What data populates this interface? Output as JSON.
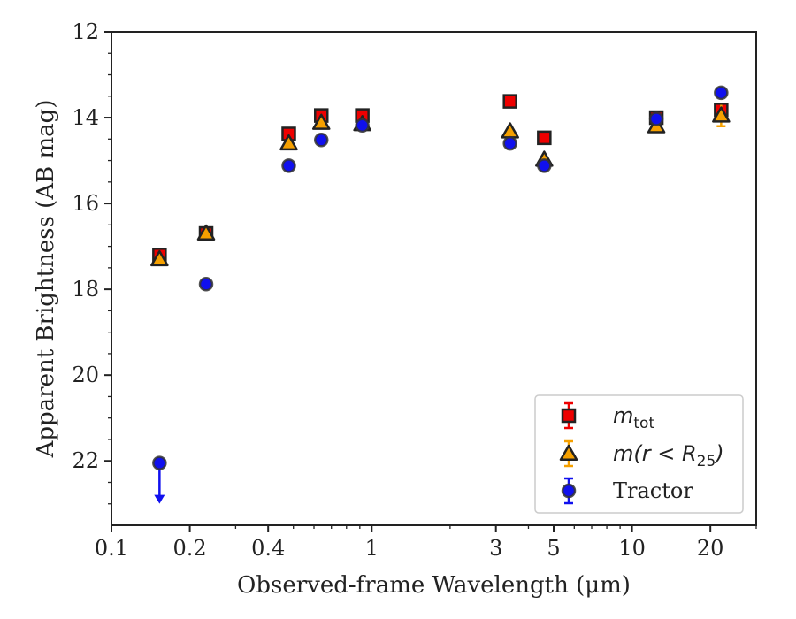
{
  "chart_data": {
    "type": "scatter",
    "xlabel": "Observed-frame Wavelength (μm)",
    "ylabel": "Apparent Brightness (AB mag)",
    "xscale": "log",
    "xlim": [
      0.1,
      30
    ],
    "ylim": [
      23.5,
      12
    ],
    "y_inverted": true,
    "xticks": [
      {
        "value": 0.1,
        "label": "0.1"
      },
      {
        "value": 0.2,
        "label": "0.2"
      },
      {
        "value": 0.4,
        "label": "0.4"
      },
      {
        "value": 1,
        "label": "1"
      },
      {
        "value": 3,
        "label": "3"
      },
      {
        "value": 5,
        "label": "5"
      },
      {
        "value": 10,
        "label": "10"
      },
      {
        "value": 20,
        "label": "20"
      }
    ],
    "yticks": [
      12,
      14,
      16,
      18,
      20,
      22
    ],
    "legend": {
      "position": "lower right"
    },
    "series": [
      {
        "name": "m_tot",
        "legend_main": "m",
        "legend_sub": "tot",
        "marker": "square",
        "color": "#ee0000",
        "edgecolor": "#222222",
        "points": [
          {
            "x": 0.153,
            "y": 17.2
          },
          {
            "x": 0.231,
            "y": 16.7
          },
          {
            "x": 0.48,
            "y": 14.38
          },
          {
            "x": 0.64,
            "y": 13.95
          },
          {
            "x": 0.92,
            "y": 13.95
          },
          {
            "x": 3.4,
            "y": 13.62
          },
          {
            "x": 4.6,
            "y": 14.47
          },
          {
            "x": 12.4,
            "y": 14.0
          },
          {
            "x": 22.0,
            "y": 13.82
          }
        ]
      },
      {
        "name": "m(r < R25)",
        "legend_main": "m(r < R",
        "legend_sub": "25",
        "legend_tail": ")",
        "marker": "triangle",
        "color": "#f5a000",
        "edgecolor": "#222222",
        "points": [
          {
            "x": 0.153,
            "y": 17.3
          },
          {
            "x": 0.231,
            "y": 16.7
          },
          {
            "x": 0.48,
            "y": 14.6
          },
          {
            "x": 0.64,
            "y": 14.12
          },
          {
            "x": 0.92,
            "y": 14.15
          },
          {
            "x": 3.4,
            "y": 14.32
          },
          {
            "x": 4.6,
            "y": 14.98
          },
          {
            "x": 12.4,
            "y": 14.2
          },
          {
            "x": 22.0,
            "y": 13.95,
            "yerr": 0.25
          }
        ]
      },
      {
        "name": "Tractor",
        "marker": "circle",
        "color": "#1010ee",
        "edgecolor": "#333333",
        "points": [
          {
            "x": 0.153,
            "y": 22.05,
            "upper_limit": true
          },
          {
            "x": 0.231,
            "y": 17.88
          },
          {
            "x": 0.48,
            "y": 15.12
          },
          {
            "x": 0.64,
            "y": 14.52
          },
          {
            "x": 0.92,
            "y": 14.18
          },
          {
            "x": 3.4,
            "y": 14.6
          },
          {
            "x": 4.6,
            "y": 15.12
          },
          {
            "x": 12.4,
            "y": 14.03
          },
          {
            "x": 22.0,
            "y": 13.42
          }
        ]
      }
    ]
  }
}
